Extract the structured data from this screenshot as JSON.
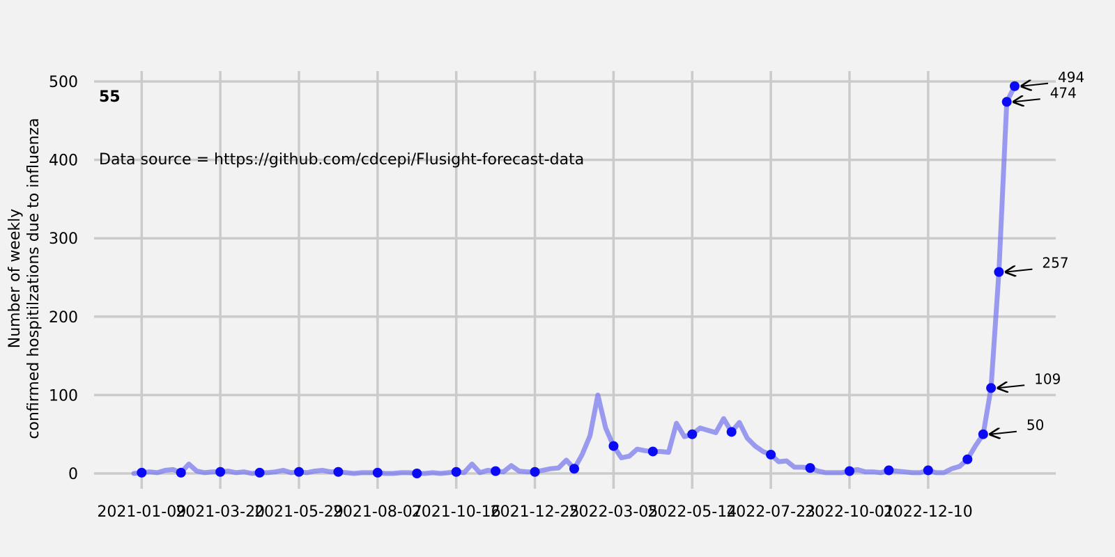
{
  "chart_data": {
    "type": "line",
    "xlabel": "",
    "ylabel": "Number of weekly\nconfirmed hospitilzations due to influenza",
    "ylim": [
      -20,
      520
    ],
    "yticks": [
      0,
      100,
      200,
      300,
      400,
      500
    ],
    "x_tick_labels": [
      "2021-01-09",
      "2021-03-20",
      "2021-05-29",
      "2021-08-07",
      "2021-10-16",
      "2021-12-25",
      "2022-03-05",
      "2022-05-14",
      "2022-07-23",
      "2022-10-01",
      "2022-12-10"
    ],
    "corner_label": "55",
    "source_note": "Data source = https://github.com/cdcepi/Flusight-forecast-data",
    "grid": true,
    "colors": {
      "line": "#7b7bef",
      "marker": "#0a0af5",
      "grid": "#cbcbcb",
      "background": "#f2f2f2"
    },
    "series": [
      {
        "values": [
          0,
          1,
          2,
          1,
          4,
          5,
          1,
          12,
          3,
          1,
          2,
          2,
          3,
          1,
          2,
          0,
          1,
          1,
          2,
          4,
          1,
          2,
          1,
          3,
          4,
          2,
          2,
          1,
          0,
          1,
          1,
          1,
          0,
          0,
          1,
          1,
          0,
          0,
          1,
          0,
          1,
          2,
          1,
          12,
          1,
          4,
          3,
          2,
          10,
          3,
          2,
          2,
          4,
          6,
          7,
          17,
          6,
          24,
          48,
          100,
          58,
          35,
          20,
          22,
          31,
          29,
          28,
          28,
          27,
          64,
          47,
          50,
          58,
          55,
          52,
          70,
          53,
          65,
          45,
          35,
          28,
          24,
          15,
          16,
          8,
          8,
          7,
          3,
          1,
          1,
          1,
          3,
          5,
          2,
          2,
          1,
          4,
          3,
          2,
          1,
          1,
          4,
          1,
          1,
          6,
          9,
          18,
          35,
          50,
          109,
          257,
          474,
          494
        ]
      }
    ],
    "annotations": [
      {
        "label": "494",
        "value": 494
      },
      {
        "label": "474",
        "value": 474
      },
      {
        "label": "257",
        "value": 257
      },
      {
        "label": "109",
        "value": 109
      },
      {
        "label": "50",
        "value": 50
      }
    ]
  }
}
